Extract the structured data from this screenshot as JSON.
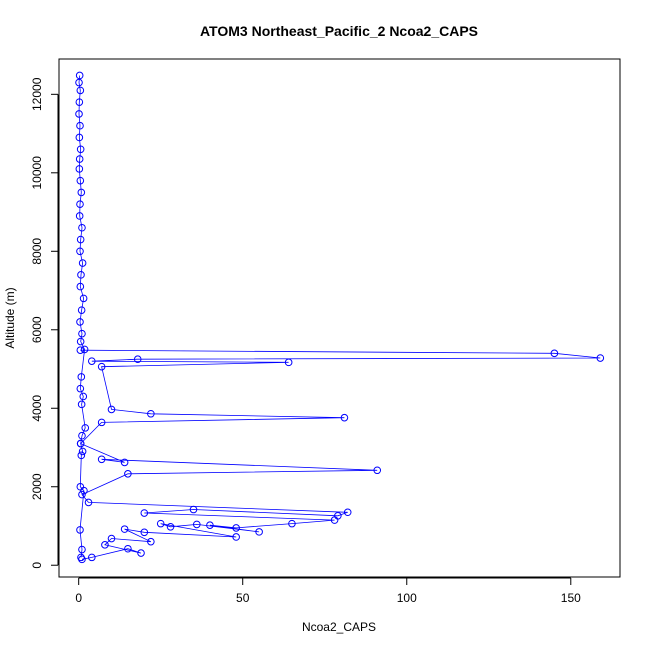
{
  "chart_data": {
    "type": "scatter",
    "title": "ATOM3 Northeast_Pacific_2 Ncoa2_CAPS",
    "xlabel": "Ncoa2_CAPS",
    "ylabel": "Altitude (m)",
    "xlim": [
      -6,
      165
    ],
    "ylim": [
      -300,
      12900
    ],
    "x_ticks": [
      0,
      50,
      100,
      150
    ],
    "y_ticks": [
      0,
      2000,
      4000,
      6000,
      8000,
      10000,
      12000
    ],
    "grid": false,
    "legend": "none",
    "colors": {
      "points": "#0000ff",
      "line": "#0000ff",
      "axis": "#000000"
    },
    "series": [
      {
        "x": [
          0.3,
          0.1,
          0.5,
          0.2,
          0.1,
          0.4,
          0.2,
          0.6,
          0.3,
          0.2,
          0.5,
          0.8,
          0.4,
          0.3,
          1.0,
          0.6,
          0.4,
          1.2,
          0.7,
          0.5,
          1.5,
          0.9,
          0.4,
          1.0,
          0.6,
          1.8,
          0.8,
          0.5,
          1.4,
          0.9,
          2.0,
          1.0,
          0.6,
          1.2,
          0.8,
          0.5,
          1.6,
          0.4,
          1.0,
          0.7
        ],
        "y": [
          12480,
          12300,
          12100,
          11800,
          11500,
          11200,
          10900,
          10600,
          10350,
          10100,
          9800,
          9500,
          9200,
          8900,
          8600,
          8300,
          8000,
          7700,
          7400,
          7100,
          6800,
          6500,
          6200,
          5900,
          5700,
          5500,
          4800,
          4500,
          4300,
          4100,
          3500,
          3300,
          3100,
          2900,
          2800,
          2000,
          1900,
          900,
          400,
          200
        ]
      },
      {
        "x": [
          0.5,
          145,
          159,
          18,
          4,
          64,
          7,
          10,
          22,
          81,
          7,
          0.6,
          14,
          7,
          91,
          15,
          1.0,
          3,
          82,
          79,
          35,
          20,
          78,
          65,
          48,
          40,
          55,
          36,
          28,
          25,
          48,
          20,
          14,
          22,
          10,
          8,
          19,
          15,
          4,
          1.0
        ],
        "y": [
          5480,
          5400,
          5280,
          5250,
          5200,
          5170,
          5060,
          3970,
          3860,
          3760,
          3640,
          3100,
          2620,
          2700,
          2420,
          2330,
          1800,
          1600,
          1350,
          1260,
          1420,
          1330,
          1150,
          1060,
          950,
          1020,
          850,
          1040,
          980,
          1060,
          720,
          840,
          920,
          600,
          680,
          520,
          310,
          420,
          200,
          150
        ]
      }
    ]
  }
}
